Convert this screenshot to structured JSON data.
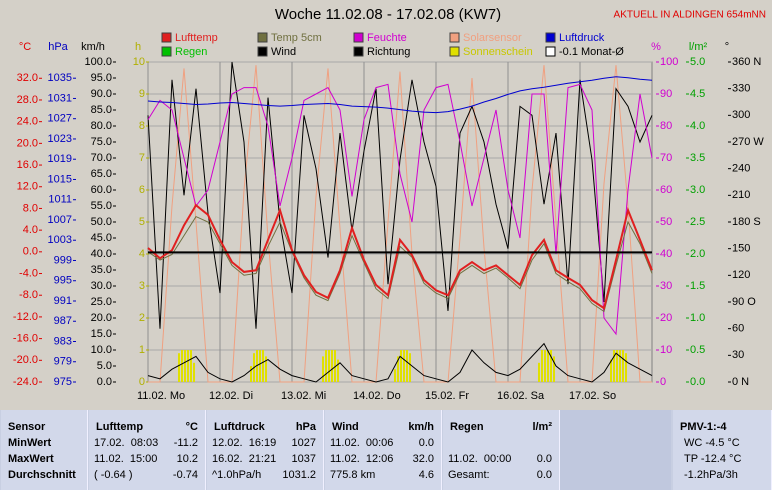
{
  "title": "Woche 11.02.08 - 17.02.08 (KW7)",
  "location": "AKTUELL IN ALDINGEN 654mNN",
  "chart_data": {
    "type": "line",
    "grid": true,
    "x": [
      0,
      4,
      8,
      12,
      16,
      20,
      24,
      28,
      32,
      36,
      40,
      44,
      48,
      52,
      56,
      60,
      64,
      68,
      72,
      76,
      80,
      84,
      88,
      92,
      96,
      100,
      104,
      108,
      112,
      116,
      120,
      124,
      128,
      132,
      136,
      140,
      144,
      148,
      152,
      156,
      160,
      164,
      168
    ],
    "xlim": [
      0,
      168
    ],
    "xticks": [
      {
        "value": 0,
        "label": "11.02.  Mo"
      },
      {
        "value": 24,
        "label": "12.02.  Di"
      },
      {
        "value": 48,
        "label": "13.02.  Mi"
      },
      {
        "value": 72,
        "label": "14.02.  Do"
      },
      {
        "value": 96,
        "label": "15.02.  Fr"
      },
      {
        "value": 120,
        "label": "16.02.  Sa"
      },
      {
        "value": 144,
        "label": "17.02.  So"
      }
    ],
    "axes": {
      "temp": {
        "label": "°C",
        "color": "#e00000",
        "lim": [
          -24,
          35
        ],
        "ticks": [
          {
            "value": 32,
            "label": "32.0"
          },
          {
            "value": 28,
            "label": "28.0"
          },
          {
            "value": 24,
            "label": "24.0"
          },
          {
            "value": 20,
            "label": "20.0"
          },
          {
            "value": 16,
            "label": "16.0"
          },
          {
            "value": 12,
            "label": "12.0"
          },
          {
            "value": 8,
            "label": "8.0"
          },
          {
            "value": 4,
            "label": "4.0"
          },
          {
            "value": 0,
            "label": "0.0"
          },
          {
            "value": -4,
            "label": "-4.0"
          },
          {
            "value": -8,
            "label": "-8.0"
          },
          {
            "value": -12,
            "label": "-12.0"
          },
          {
            "value": -16,
            "label": "-16.0"
          },
          {
            "value": -20,
            "label": "-20.0"
          },
          {
            "value": -24,
            "label": "-24.0"
          }
        ]
      },
      "pressure": {
        "label": "hPa",
        "color": "#0000c0",
        "lim": [
          975,
          1038.2
        ],
        "ticks": [
          1035,
          1031,
          1027,
          1023,
          1019,
          1015,
          1011,
          1007,
          1003,
          999,
          995,
          991,
          987,
          983,
          979,
          975
        ]
      },
      "wind": {
        "label": "km/h",
        "color": "#000000",
        "lim": [
          0,
          100
        ],
        "ticks": [
          {
            "value": 100,
            "label": "100.0"
          },
          {
            "value": 95,
            "label": "95.0"
          },
          {
            "value": 90,
            "label": "90.0"
          },
          {
            "value": 85,
            "label": "85.0"
          },
          {
            "value": 80,
            "label": "80.0"
          },
          {
            "value": 75,
            "label": "75.0"
          },
          {
            "value": 70,
            "label": "70.0"
          },
          {
            "value": 65,
            "label": "65.0"
          },
          {
            "value": 60,
            "label": "60.0"
          },
          {
            "value": 55,
            "label": "55.0"
          },
          {
            "value": 50,
            "label": "50.0"
          },
          {
            "value": 45,
            "label": "45.0"
          },
          {
            "value": 40,
            "label": "40.0"
          },
          {
            "value": 35,
            "label": "35.0"
          },
          {
            "value": 30,
            "label": "30.0"
          },
          {
            "value": 25,
            "label": "25.0"
          },
          {
            "value": 20,
            "label": "20.0"
          },
          {
            "value": 15,
            "label": "15.0"
          },
          {
            "value": 10,
            "label": "10.0"
          },
          {
            "value": 5,
            "label": "5.0"
          },
          {
            "value": 0,
            "label": "0.0"
          }
        ]
      },
      "sun": {
        "label": "h",
        "color": "#b0b000",
        "lim": [
          0,
          10
        ],
        "ticks": [
          10,
          9,
          8,
          7,
          6,
          5,
          4,
          3,
          2,
          1,
          0
        ]
      },
      "humidity": {
        "label": "%",
        "color": "#d000d0",
        "lim": [
          0,
          100
        ],
        "ticks": [
          100,
          90,
          80,
          70,
          60,
          50,
          40,
          30,
          20,
          10,
          0
        ]
      },
      "rain": {
        "label": "l/m²",
        "color": "#00a000",
        "lim": [
          0,
          5
        ],
        "ticks": [
          {
            "value": 5,
            "label": "5.0"
          },
          {
            "value": 4.5,
            "label": "4.5"
          },
          {
            "value": 4,
            "label": "4.0"
          },
          {
            "value": 3.5,
            "label": "3.5"
          },
          {
            "value": 3,
            "label": "3.0"
          },
          {
            "value": 2.5,
            "label": "2.5"
          },
          {
            "value": 2,
            "label": "2.0"
          },
          {
            "value": 1.5,
            "label": "1.5"
          },
          {
            "value": 1,
            "label": "1.0"
          },
          {
            "value": 0.5,
            "label": "0.5"
          },
          {
            "value": 0,
            "label": "0.0"
          }
        ]
      },
      "direction": {
        "label": "°",
        "color": "#000000",
        "lim": [
          0,
          360
        ],
        "ticks": [
          {
            "value": 360,
            "label": "360 N"
          },
          330,
          300,
          {
            "value": 270,
            "label": "270 W"
          },
          240,
          210,
          {
            "value": 180,
            "label": "180 S"
          },
          150,
          120,
          {
            "value": 90,
            "label": "90  O"
          },
          60,
          30,
          {
            "value": 0,
            "label": "0  N"
          }
        ]
      }
    },
    "series": [
      {
        "name": "Lufttemp",
        "color": "#e02020",
        "axis": "temp",
        "values": [
          0.7,
          -1.2,
          0.3,
          4.9,
          8.6,
          6.8,
          2.2,
          -1.9,
          -3.7,
          -3.4,
          2.2,
          7.7,
          0.3,
          -4.3,
          -7.4,
          -8.5,
          -3.4,
          4.4,
          -1.5,
          -6.1,
          -8.0,
          2.2,
          -0.6,
          -5.2,
          -7.1,
          -8.0,
          -3.4,
          -1.9,
          -3.4,
          -2.5,
          -4.3,
          -6.1,
          -0.6,
          2.2,
          -3.4,
          -4.8,
          -6.1,
          -8.9,
          -10.4,
          -1.5,
          7.7,
          2.2,
          -3.4
        ]
      },
      {
        "name": "Temp 5cm",
        "color": "#707040",
        "axis": "temp",
        "values": [
          0.0,
          -1.5,
          -0.5,
          3.0,
          6.5,
          5.5,
          1.5,
          -2.5,
          -4.3,
          -4.0,
          1.0,
          5.5,
          0.0,
          -4.8,
          -8.0,
          -9.0,
          -4.0,
          3.0,
          -2.0,
          -6.8,
          -8.6,
          1.0,
          -1.0,
          -5.8,
          -7.6,
          -8.6,
          -4.0,
          -2.5,
          -4.0,
          -3.0,
          -4.8,
          -6.8,
          -1.5,
          1.5,
          -4.0,
          -5.5,
          -6.8,
          -9.5,
          -11.0,
          -2.5,
          5.5,
          1.5,
          -4.0
        ]
      },
      {
        "name": "Feuchte",
        "color": "#d000d0",
        "axis": "humidity",
        "values": [
          82,
          88,
          85,
          70,
          55,
          60,
          75,
          90,
          92,
          92,
          80,
          55,
          70,
          88,
          90,
          92,
          85,
          58,
          82,
          92,
          93,
          65,
          50,
          85,
          92,
          93,
          75,
          55,
          70,
          85,
          60,
          45,
          90,
          90,
          40,
          92,
          93,
          85,
          20,
          15,
          60,
          90,
          70
        ]
      },
      {
        "name": "Solarsensor",
        "color": "#f0a080",
        "axis": "humidity",
        "values": [
          0,
          0,
          55,
          98,
          50,
          0,
          0,
          0,
          60,
          99,
          45,
          0,
          0,
          0,
          58,
          98,
          48,
          0,
          0,
          0,
          50,
          97,
          40,
          0,
          0,
          0,
          45,
          95,
          42,
          0,
          0,
          0,
          60,
          99,
          50,
          0,
          0,
          0,
          62,
          99,
          55,
          0,
          0
        ]
      },
      {
        "name": "Luftdruck",
        "color": "#0000d0",
        "axis": "pressure",
        "values": [
          1030.5,
          1030.3,
          1030.2,
          1030.0,
          1029.8,
          1029.9,
          1030.1,
          1030.2,
          1030.0,
          1029.8,
          1029.6,
          1029.5,
          1029.6,
          1029.8,
          1029.9,
          1030.0,
          1029.8,
          1029.5,
          1029.4,
          1029.3,
          1029.1,
          1028.8,
          1028.5,
          1028.3,
          1028.2,
          1028.4,
          1028.9,
          1029.5,
          1030.3,
          1031.0,
          1031.8,
          1032.5,
          1032.9,
          1033.2,
          1033.6,
          1034.0,
          1034.3,
          1034.6,
          1035.0,
          1035.3,
          1035.1,
          1034.8,
          1034.6
        ]
      },
      {
        "name": "Regen",
        "color": "#00c000",
        "axis": "rain"
      },
      {
        "name": "Wind",
        "color": "#000000",
        "axis": "wind",
        "values": [
          2,
          1,
          4,
          6,
          8,
          3,
          1,
          0,
          2,
          5,
          7,
          4,
          2,
          1,
          0,
          3,
          6,
          2,
          1,
          0,
          1,
          8,
          5,
          2,
          1,
          0,
          3,
          10,
          6,
          3,
          2,
          4,
          8,
          12,
          5,
          2,
          1,
          0,
          3,
          9,
          6,
          4,
          2
        ]
      },
      {
        "name": "Richtung",
        "color": "#000000",
        "axis": "direction",
        "values": [
          300,
          60,
          340,
          210,
          330,
          190,
          100,
          360,
          270,
          60,
          320,
          180,
          100,
          300,
          240,
          140,
          280,
          170,
          260,
          330,
          110,
          250,
          340,
          270,
          220,
          80,
          280,
          310,
          270,
          200,
          150,
          310,
          300,
          200,
          280,
          110,
          340,
          250,
          90,
          330,
          310,
          270,
          300
        ]
      },
      {
        "name": "Sonnenschein",
        "color": "#e0e000",
        "axis": "sun",
        "x": [
          10,
          11,
          12,
          13,
          14,
          15,
          34,
          35,
          36,
          37,
          38,
          39,
          58,
          59,
          60,
          61,
          62,
          63,
          82,
          83,
          84,
          85,
          86,
          87,
          130,
          131,
          132,
          133,
          134,
          135,
          154,
          155,
          156,
          157,
          158,
          159
        ],
        "values": [
          0.9,
          1.0,
          1.0,
          1.0,
          1.0,
          0.6,
          0.5,
          0.9,
          1.0,
          1.0,
          1.0,
          0.8,
          0.8,
          1.0,
          1.0,
          1.0,
          1.0,
          0.7,
          0.4,
          0.8,
          1.0,
          1.0,
          1.0,
          0.9,
          0.6,
          1.0,
          1.0,
          1.0,
          1.0,
          0.8,
          0.7,
          1.0,
          1.0,
          1.0,
          1.0,
          0.9
        ]
      },
      {
        "name": "-0.1 Monat-Ø",
        "color": "#000000",
        "axis": "temp",
        "value": -0.1
      }
    ]
  },
  "table": {
    "columns": [
      {
        "name": "Sensor"
      },
      {
        "name": "Lufttemp",
        "unit": "°C"
      },
      {
        "name": "Luftdruck",
        "unit": "hPa"
      },
      {
        "name": "Wind",
        "unit": "km/h"
      },
      {
        "name": "Regen",
        "unit": "l/m²"
      },
      {
        "name": "PMV-1:-4"
      }
    ],
    "rows": [
      {
        "label": "MinWert",
        "cells": [
          {
            "time": "17.02.  08:03",
            "value": "-11.2"
          },
          {
            "time": "12.02.  16:19",
            "value": "1027"
          },
          {
            "time": "11.02.  00:06",
            "value": "0.0"
          },
          null,
          {
            "text": "WC -4.5 °C"
          }
        ]
      },
      {
        "label": "MaxWert",
        "cells": [
          {
            "time": "11.02.  15:00",
            "value": "10.2"
          },
          {
            "time": "16.02.  21:21",
            "value": "1037"
          },
          {
            "time": "11.02.  12:06",
            "value": "32.0"
          },
          {
            "time": "11.02.  00:00",
            "value": "0.0"
          },
          {
            "text": "TP -12.4 °C"
          }
        ]
      },
      {
        "label": "Durchschnitt",
        "cells": [
          {
            "time": "( -0.64 )",
            "value": "-0.74"
          },
          {
            "time": "^1.0hPa/h",
            "value": "1031.2"
          },
          {
            "time": "775.8 km",
            "value": "4.6"
          },
          {
            "time": "Gesamt:",
            "value": "0.0"
          },
          {
            "text": "-1.2hPa/3h"
          }
        ]
      }
    ]
  }
}
